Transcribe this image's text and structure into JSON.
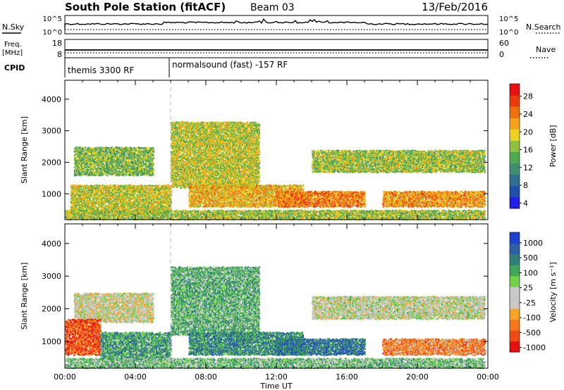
{
  "header": {
    "station": "South Pole Station (fitACF)",
    "beam": "Beam 03",
    "date": "13/Feb/2016"
  },
  "top_panels": {
    "nsky_label": "N.Sky",
    "nsky_ticks": [
      "10^5",
      "10^0"
    ],
    "nsearch_label": "N.Search",
    "nsearch_ticks": [
      "10^5",
      "10^0"
    ],
    "freq_label_1": "Freq.",
    "freq_label_2": "[MHz]",
    "freq_ticks": [
      "18",
      "8"
    ],
    "nave_label": "Nave",
    "nave_ticks": [
      "60",
      "0"
    ],
    "cpid_label": "CPID",
    "cpid_segments": [
      "themis 3300 RF",
      "normalsound (fast) -157 RF"
    ]
  },
  "chart_data": [
    {
      "type": "heatmap",
      "title": "Power",
      "xlabel": "Time UT",
      "ylabel": "Slant Range [km]",
      "x_ticks": [
        "00:00",
        "04:00",
        "08:00",
        "12:00",
        "16:00",
        "20:00",
        "00:00"
      ],
      "y_ticks": [
        "1000",
        "2000",
        "3000",
        "4000"
      ],
      "xlim_hours": [
        0,
        24
      ],
      "ylim_km": [
        180,
        4600
      ],
      "colorbar_label": "Power [dB]",
      "colorbar_ticks": [
        "28",
        "24",
        "20",
        "16",
        "12",
        "8",
        "4"
      ],
      "colorbar_range": [
        0,
        30
      ],
      "colors": [
        "#1f1fe6",
        "#1f4fa8",
        "#2f6f8f",
        "#3f8f6f",
        "#4faa4f",
        "#8fbf3f",
        "#efd21f",
        "#f7a11a",
        "#ef6f12",
        "#e83a0d",
        "#e81010"
      ],
      "bands": [
        {
          "t0": 0.5,
          "t1": 5.0,
          "r0": 1600,
          "r1": 2500,
          "level": 0.45
        },
        {
          "t0": 0.3,
          "t1": 6.0,
          "r0": 400,
          "r1": 1300,
          "level": 0.55
        },
        {
          "t0": 6.0,
          "t1": 11.0,
          "r0": 1200,
          "r1": 3300,
          "level": 0.55
        },
        {
          "t0": 7.0,
          "t1": 13.5,
          "r0": 600,
          "r1": 1300,
          "level": 0.65
        },
        {
          "t0": 12.0,
          "t1": 17.0,
          "r0": 600,
          "r1": 1100,
          "level": 0.75
        },
        {
          "t0": 14.0,
          "t1": 23.8,
          "r0": 1700,
          "r1": 2400,
          "level": 0.5
        },
        {
          "t0": 18.0,
          "t1": 23.8,
          "r0": 600,
          "r1": 1100,
          "level": 0.7
        },
        {
          "t0": 0.0,
          "t1": 23.8,
          "r0": 200,
          "r1": 500,
          "level": 0.5
        }
      ]
    },
    {
      "type": "heatmap",
      "title": "Velocity",
      "xlabel": "Time UT",
      "ylabel": "Slant Range [km]",
      "x_ticks": [
        "00:00",
        "04:00",
        "08:00",
        "12:00",
        "16:00",
        "20:00",
        "00:00"
      ],
      "y_ticks": [
        "1000",
        "2000",
        "3000",
        "4000"
      ],
      "xlim_hours": [
        0,
        24
      ],
      "ylim_km": [
        180,
        4600
      ],
      "colorbar_label": "Velocity [m s⁻¹]",
      "colorbar_ticks": [
        "1000",
        "500",
        "100",
        "25",
        "-25",
        "-100",
        "-500",
        "-1000"
      ],
      "colorbar_range": [
        -1200,
        1200
      ],
      "colors": [
        "#e60f0f",
        "#ef4a14",
        "#f5781a",
        "#f9a326",
        "#c8c8c8",
        "#c8c8c8",
        "#6fd14a",
        "#3fa65a",
        "#2f7f7a",
        "#2f5fa6",
        "#1f3fcf"
      ],
      "bands": [
        {
          "t0": 0.5,
          "t1": 5.0,
          "r0": 1600,
          "r1": 2500,
          "level": 0.45
        },
        {
          "t0": 0.0,
          "t1": 2.0,
          "r0": 600,
          "r1": 1700,
          "level": 0.15
        },
        {
          "t0": 2.0,
          "t1": 6.0,
          "r0": 400,
          "r1": 1300,
          "level": 0.7
        },
        {
          "t0": 6.0,
          "t1": 11.0,
          "r0": 1200,
          "r1": 3300,
          "level": 0.65
        },
        {
          "t0": 7.0,
          "t1": 13.5,
          "r0": 600,
          "r1": 1300,
          "level": 0.75
        },
        {
          "t0": 12.0,
          "t1": 17.0,
          "r0": 600,
          "r1": 1100,
          "level": 0.8
        },
        {
          "t0": 14.0,
          "t1": 23.8,
          "r0": 1700,
          "r1": 2400,
          "level": 0.48
        },
        {
          "t0": 18.0,
          "t1": 23.8,
          "r0": 600,
          "r1": 1100,
          "level": 0.25
        },
        {
          "t0": 0.0,
          "t1": 23.8,
          "r0": 200,
          "r1": 500,
          "level": 0.6
        }
      ]
    }
  ]
}
